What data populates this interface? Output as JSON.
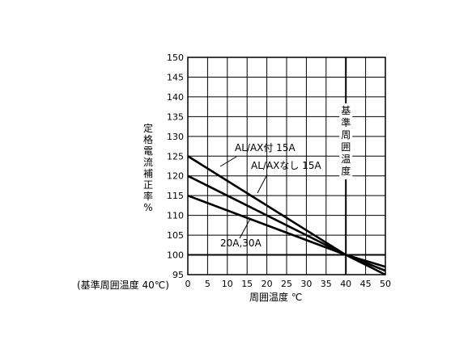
{
  "chart_data": {
    "type": "line",
    "xlabel": "周囲温度 ℃",
    "ylabel": "定格電流補正率 %",
    "xlim": [
      0,
      50
    ],
    "ylim": [
      95,
      150
    ],
    "x_ticks": [
      "0",
      "5",
      "10",
      "15",
      "20",
      "25",
      "30",
      "35",
      "40",
      "45",
      "50"
    ],
    "y_ticks": [
      "95",
      "100",
      "105",
      "110",
      "115",
      "120",
      "125",
      "130",
      "135",
      "140",
      "145",
      "150"
    ],
    "grid": true,
    "series": [
      {
        "name": "AL/AX付 15A",
        "x": [
          0,
          40,
          50
        ],
        "y": [
          125,
          100,
          95
        ]
      },
      {
        "name": "AL/AXなし 15A",
        "x": [
          0,
          40,
          50
        ],
        "y": [
          120,
          100,
          96
        ]
      },
      {
        "name": "20A,30A",
        "x": [
          0,
          40,
          50
        ],
        "y": [
          115,
          100,
          97
        ]
      }
    ],
    "reference_line": {
      "x": 40,
      "label": "基準周囲温度"
    },
    "note": "(基準周囲温度 40℃)"
  }
}
